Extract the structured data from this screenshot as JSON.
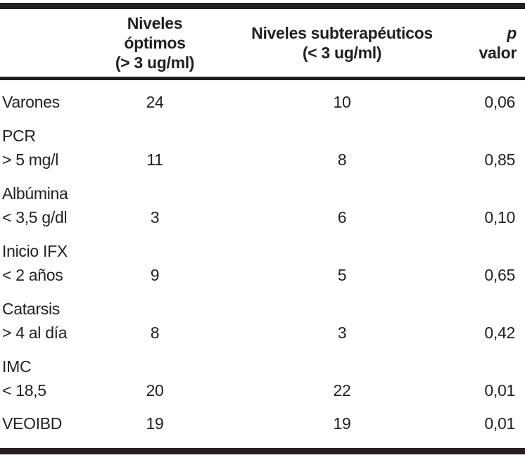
{
  "colors": {
    "text": "#231f20",
    "rule": "#241d1b",
    "background": "#ffffff"
  },
  "table": {
    "header": {
      "label_col": "",
      "optimos_line1": "Niveles óptimos",
      "optimos_line2": "(> 3 ug/ml)",
      "subter_line1": "Niveles subterapéuticos",
      "subter_line2": "(< 3 ug/ml)",
      "p_italic": "p",
      "p_rest": "valor"
    },
    "rows": [
      {
        "label_line1": "Varones",
        "label_line2": "",
        "optimos": "24",
        "subterapeuticos": "10",
        "p": "0,06"
      },
      {
        "label_line1": "PCR",
        "label_line2": "> 5 mg/l",
        "optimos": "11",
        "subterapeuticos": "8",
        "p": "0,85"
      },
      {
        "label_line1": "Albúmina",
        "label_line2": "< 3,5 g/dl",
        "optimos": "3",
        "subterapeuticos": "6",
        "p": "0,10"
      },
      {
        "label_line1": "Inicio IFX",
        "label_line2": "< 2 años",
        "optimos": "9",
        "subterapeuticos": "5",
        "p": "0,65"
      },
      {
        "label_line1": "Catarsis",
        "label_line2": "> 4 al día",
        "optimos": "8",
        "subterapeuticos": "3",
        "p": "0,42"
      },
      {
        "label_line1": "IMC",
        "label_line2": "< 18,5",
        "optimos": "20",
        "subterapeuticos": "22",
        "p": "0,01"
      },
      {
        "label_line1": "VEOIBD",
        "label_line2": "",
        "optimos": "19",
        "subterapeuticos": "19",
        "p": "0,01"
      }
    ]
  },
  "chart_data": {
    "type": "table",
    "title": "",
    "columns": [
      "",
      "Niveles óptimos (> 3 ug/ml)",
      "Niveles subterapéuticos (< 3 ug/ml)",
      "p valor"
    ],
    "rows": [
      [
        "Varones",
        24,
        10,
        "0,06"
      ],
      [
        "PCR > 5 mg/l",
        11,
        8,
        "0,85"
      ],
      [
        "Albúmina < 3,5 g/dl",
        3,
        6,
        "0,10"
      ],
      [
        "Inicio IFX < 2 años",
        9,
        5,
        "0,65"
      ],
      [
        "Catarsis > 4 al día",
        8,
        3,
        "0,42"
      ],
      [
        "IMC < 18,5",
        20,
        22,
        "0,01"
      ],
      [
        "VEOIBD",
        19,
        19,
        "0,01"
      ]
    ]
  }
}
